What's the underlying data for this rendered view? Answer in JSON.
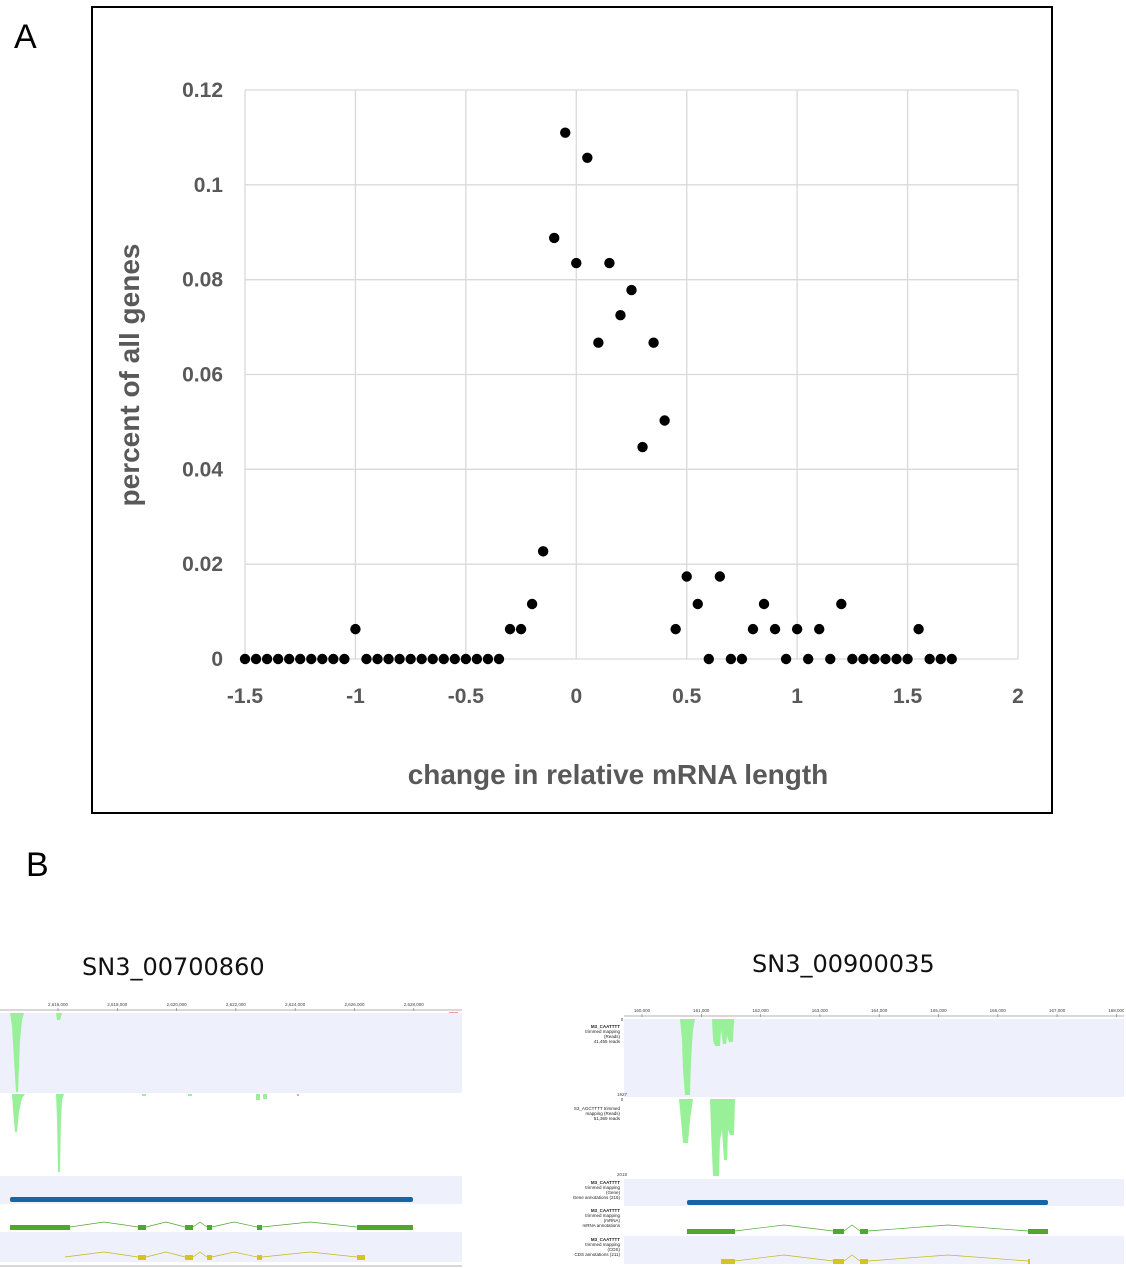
{
  "panel_a_label": "A",
  "panel_b_label": "B",
  "chart_data": {
    "type": "scatter",
    "xlabel": "change in relative mRNA length",
    "ylabel": "percent of all genes",
    "xlim": [
      -1.5,
      2
    ],
    "ylim": [
      0,
      0.12
    ],
    "xticks": [
      "-1.5",
      "-1",
      "-0.5",
      "0",
      "0.5",
      "1",
      "1.5",
      "2"
    ],
    "yticks": [
      "0",
      "0.02",
      "0.04",
      "0.06",
      "0.08",
      "0.1",
      "0.12"
    ],
    "grid": true,
    "marker_color": "#000000",
    "x": [
      -1.5,
      -1.45,
      -1.4,
      -1.35,
      -1.3,
      -1.25,
      -1.2,
      -1.15,
      -1.1,
      -1.05,
      -1.0,
      -0.95,
      -0.9,
      -0.85,
      -0.8,
      -0.75,
      -0.7,
      -0.65,
      -0.6,
      -0.55,
      -0.5,
      -0.45,
      -0.4,
      -0.35,
      -0.3,
      -0.25,
      -0.2,
      -0.15,
      -0.1,
      -0.05,
      0.0,
      0.05,
      0.1,
      0.15,
      0.2,
      0.25,
      0.3,
      0.35,
      0.4,
      0.45,
      0.5,
      0.55,
      0.6,
      0.65,
      0.7,
      0.75,
      0.8,
      0.85,
      0.9,
      0.95,
      1.0,
      1.05,
      1.1,
      1.15,
      1.2,
      1.25,
      1.3,
      1.35,
      1.4,
      1.45,
      1.5,
      1.55,
      1.6,
      1.65,
      1.7
    ],
    "y": [
      0,
      0,
      0,
      0,
      0,
      0,
      0,
      0,
      0,
      0,
      0.0063,
      0,
      0,
      0,
      0,
      0,
      0,
      0,
      0,
      0,
      0,
      0,
      0,
      0,
      0.0063,
      0.0063,
      0.0116,
      0.0227,
      0.0888,
      0.111,
      0.0835,
      0.1057,
      0.0667,
      0.0835,
      0.0725,
      0.0778,
      0.0447,
      0.0667,
      0.0503,
      0.0063,
      0.0174,
      0.0116,
      0,
      0.0174,
      0,
      0,
      0.0063,
      0.0116,
      0.0063,
      0,
      0.0063,
      0,
      0.0063,
      0,
      0.0116,
      0,
      0,
      0,
      0,
      0,
      0,
      0.0063,
      0,
      0,
      0
    ]
  },
  "genes": [
    {
      "title": "SN3_00700860",
      "ruler": [
        "2,616,000",
        "2,618,000",
        "2,620,000",
        "2,622,000",
        "2,624,000",
        "2,626,000",
        "2,628,000"
      ],
      "track_labels": [],
      "numbers": [],
      "colors": {
        "coverage": "#98f098",
        "gene": "#1565a8",
        "mrna": "#4ea82c",
        "cds": "#d2c61c",
        "track_bg": "#eef0fc"
      }
    },
    {
      "title": "SN3_00900035",
      "ruler": [
        "160,000",
        "161,000",
        "162,000",
        "163,000",
        "164,000",
        "165,000",
        "166,000",
        "167,000",
        "168,000"
      ],
      "track_labels": [
        [
          "M3_CAATTTT",
          "trimmed mapping",
          "(Reads)",
          "41,455 reads"
        ],
        [
          "S3_AGCTTTT trimmed",
          "mapping (Reads)",
          "51,369 reads"
        ],
        [
          "M3_CAATTTT",
          "trimmed mapping",
          "(Gene)",
          "Gene annotations (216)"
        ],
        [
          "M3_CAATTTT",
          "trimmed mapping",
          "(mRNA)",
          "mRNA annotations"
        ],
        [
          "M3_CAATTTT",
          "trimmed mapping",
          "(CDS)",
          "CDS annotations (211)"
        ]
      ],
      "numbers": [
        "0",
        "1927",
        "0",
        "2018"
      ],
      "colors": {
        "coverage": "#98f098",
        "gene": "#1565a8",
        "mrna": "#4ea82c",
        "cds": "#d2c61c",
        "track_bg": "#eef0fc"
      }
    }
  ]
}
